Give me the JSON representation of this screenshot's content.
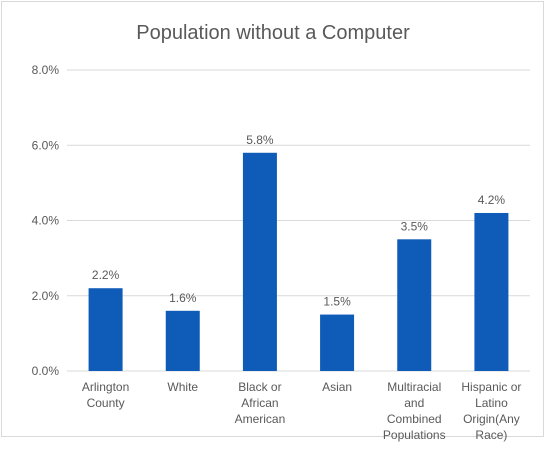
{
  "chart_data": {
    "type": "bar",
    "title": "Population without a Computer",
    "xlabel": "",
    "ylabel": "",
    "categories": [
      [
        "Arlington",
        "County"
      ],
      [
        "White"
      ],
      [
        "Black or",
        "African",
        "American"
      ],
      [
        "Asian"
      ],
      [
        "Multiracial",
        "and",
        "Combined",
        "Populations"
      ],
      [
        "Hispanic or",
        "Latino",
        "Origin(Any",
        "Race)"
      ]
    ],
    "values": [
      2.2,
      1.6,
      5.8,
      1.5,
      3.5,
      4.2
    ],
    "data_labels": [
      "2.2%",
      "1.6%",
      "5.8%",
      "1.5%",
      "3.5%",
      "4.2%"
    ],
    "ylim": [
      0,
      8
    ],
    "yticks": [
      0,
      2,
      4,
      6,
      8
    ],
    "ytick_labels": [
      "0.0%",
      "2.0%",
      "4.0%",
      "6.0%",
      "8.0%"
    ],
    "grid": true,
    "legend": "none",
    "colors": {
      "bar": "#0e5cb7",
      "grid": "#d9d9d9",
      "text": "#595959"
    }
  }
}
